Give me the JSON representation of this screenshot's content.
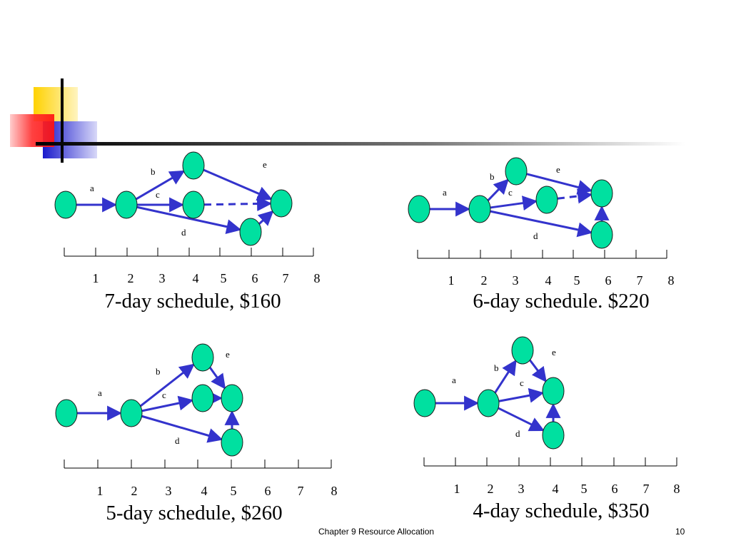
{
  "slide": {
    "footer_title": "Chapter 9 Resource Allocation",
    "page_number": "10"
  },
  "colors": {
    "node_fill": "#00E0A0",
    "edge": "#3333CC",
    "accent_yellow": "#FFD200",
    "accent_red": "#FF2020",
    "accent_blue": "#2020CC"
  },
  "timeline_ticks": [
    "1",
    "2",
    "3",
    "4",
    "5",
    "6",
    "7",
    "8"
  ],
  "diagrams": [
    {
      "id": "d7",
      "caption": "7-day schedule, $160",
      "activity_labels": {
        "a": "a",
        "b": "b",
        "c": "c",
        "d": "d",
        "e": "e"
      }
    },
    {
      "id": "d6",
      "caption": "6-day schedule. $220",
      "activity_labels": {
        "a": "a",
        "b": "b",
        "c": "c",
        "d": "d",
        "e": "e"
      }
    },
    {
      "id": "d5",
      "caption": "5-day schedule, $260",
      "activity_labels": {
        "a": "a",
        "b": "b",
        "c": "c",
        "d": "d",
        "e": "e"
      }
    },
    {
      "id": "d4",
      "caption": "4-day schedule, $350",
      "activity_labels": {
        "a": "a",
        "b": "b",
        "c": "c",
        "d": "d",
        "e": "e"
      }
    }
  ]
}
